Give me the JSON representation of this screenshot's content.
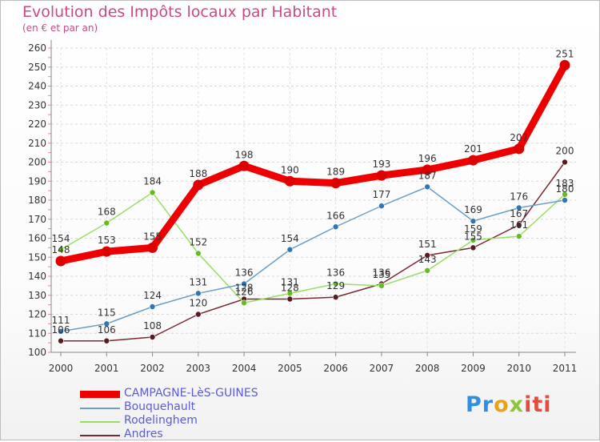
{
  "chart_data": {
    "type": "line",
    "title": "Evolution des Impôts locaux par Habitant",
    "subtitle": "(en € et par an)",
    "categories": [
      "2000",
      "2001",
      "2002",
      "2003",
      "2004",
      "2005",
      "2006",
      "2007",
      "2008",
      "2009",
      "2010",
      "2011"
    ],
    "ylim": [
      100,
      260
    ],
    "yticks": [
      100,
      110,
      120,
      130,
      140,
      150,
      160,
      170,
      180,
      190,
      200,
      210,
      220,
      230,
      240,
      250,
      260
    ],
    "grid": true,
    "legend_position": "bottom-left",
    "series": [
      {
        "name": "CAMPAGNE-LèS-GUINES",
        "color": "#ee0000",
        "values": [
          148,
          153,
          155,
          188,
          198,
          190,
          189,
          193,
          196,
          201,
          207,
          251
        ]
      },
      {
        "name": "Bouquehault",
        "color": "#6a9fc8",
        "values": [
          111,
          115,
          124,
          131,
          136,
          154,
          166,
          177,
          187,
          169,
          176,
          180
        ]
      },
      {
        "name": "Rodelinghem",
        "color": "#99dd66",
        "values": [
          154,
          168,
          184,
          152,
          126,
          131,
          136,
          135,
          143,
          159,
          161,
          183
        ]
      },
      {
        "name": "Andres",
        "color": "#7a2a33",
        "values": [
          106,
          106,
          108,
          120,
          128,
          128,
          129,
          136,
          151,
          155,
          167,
          200
        ]
      }
    ]
  },
  "logo": {
    "p1": "Pr",
    "p2": "o",
    "p3": "x",
    "p4": "iti"
  }
}
